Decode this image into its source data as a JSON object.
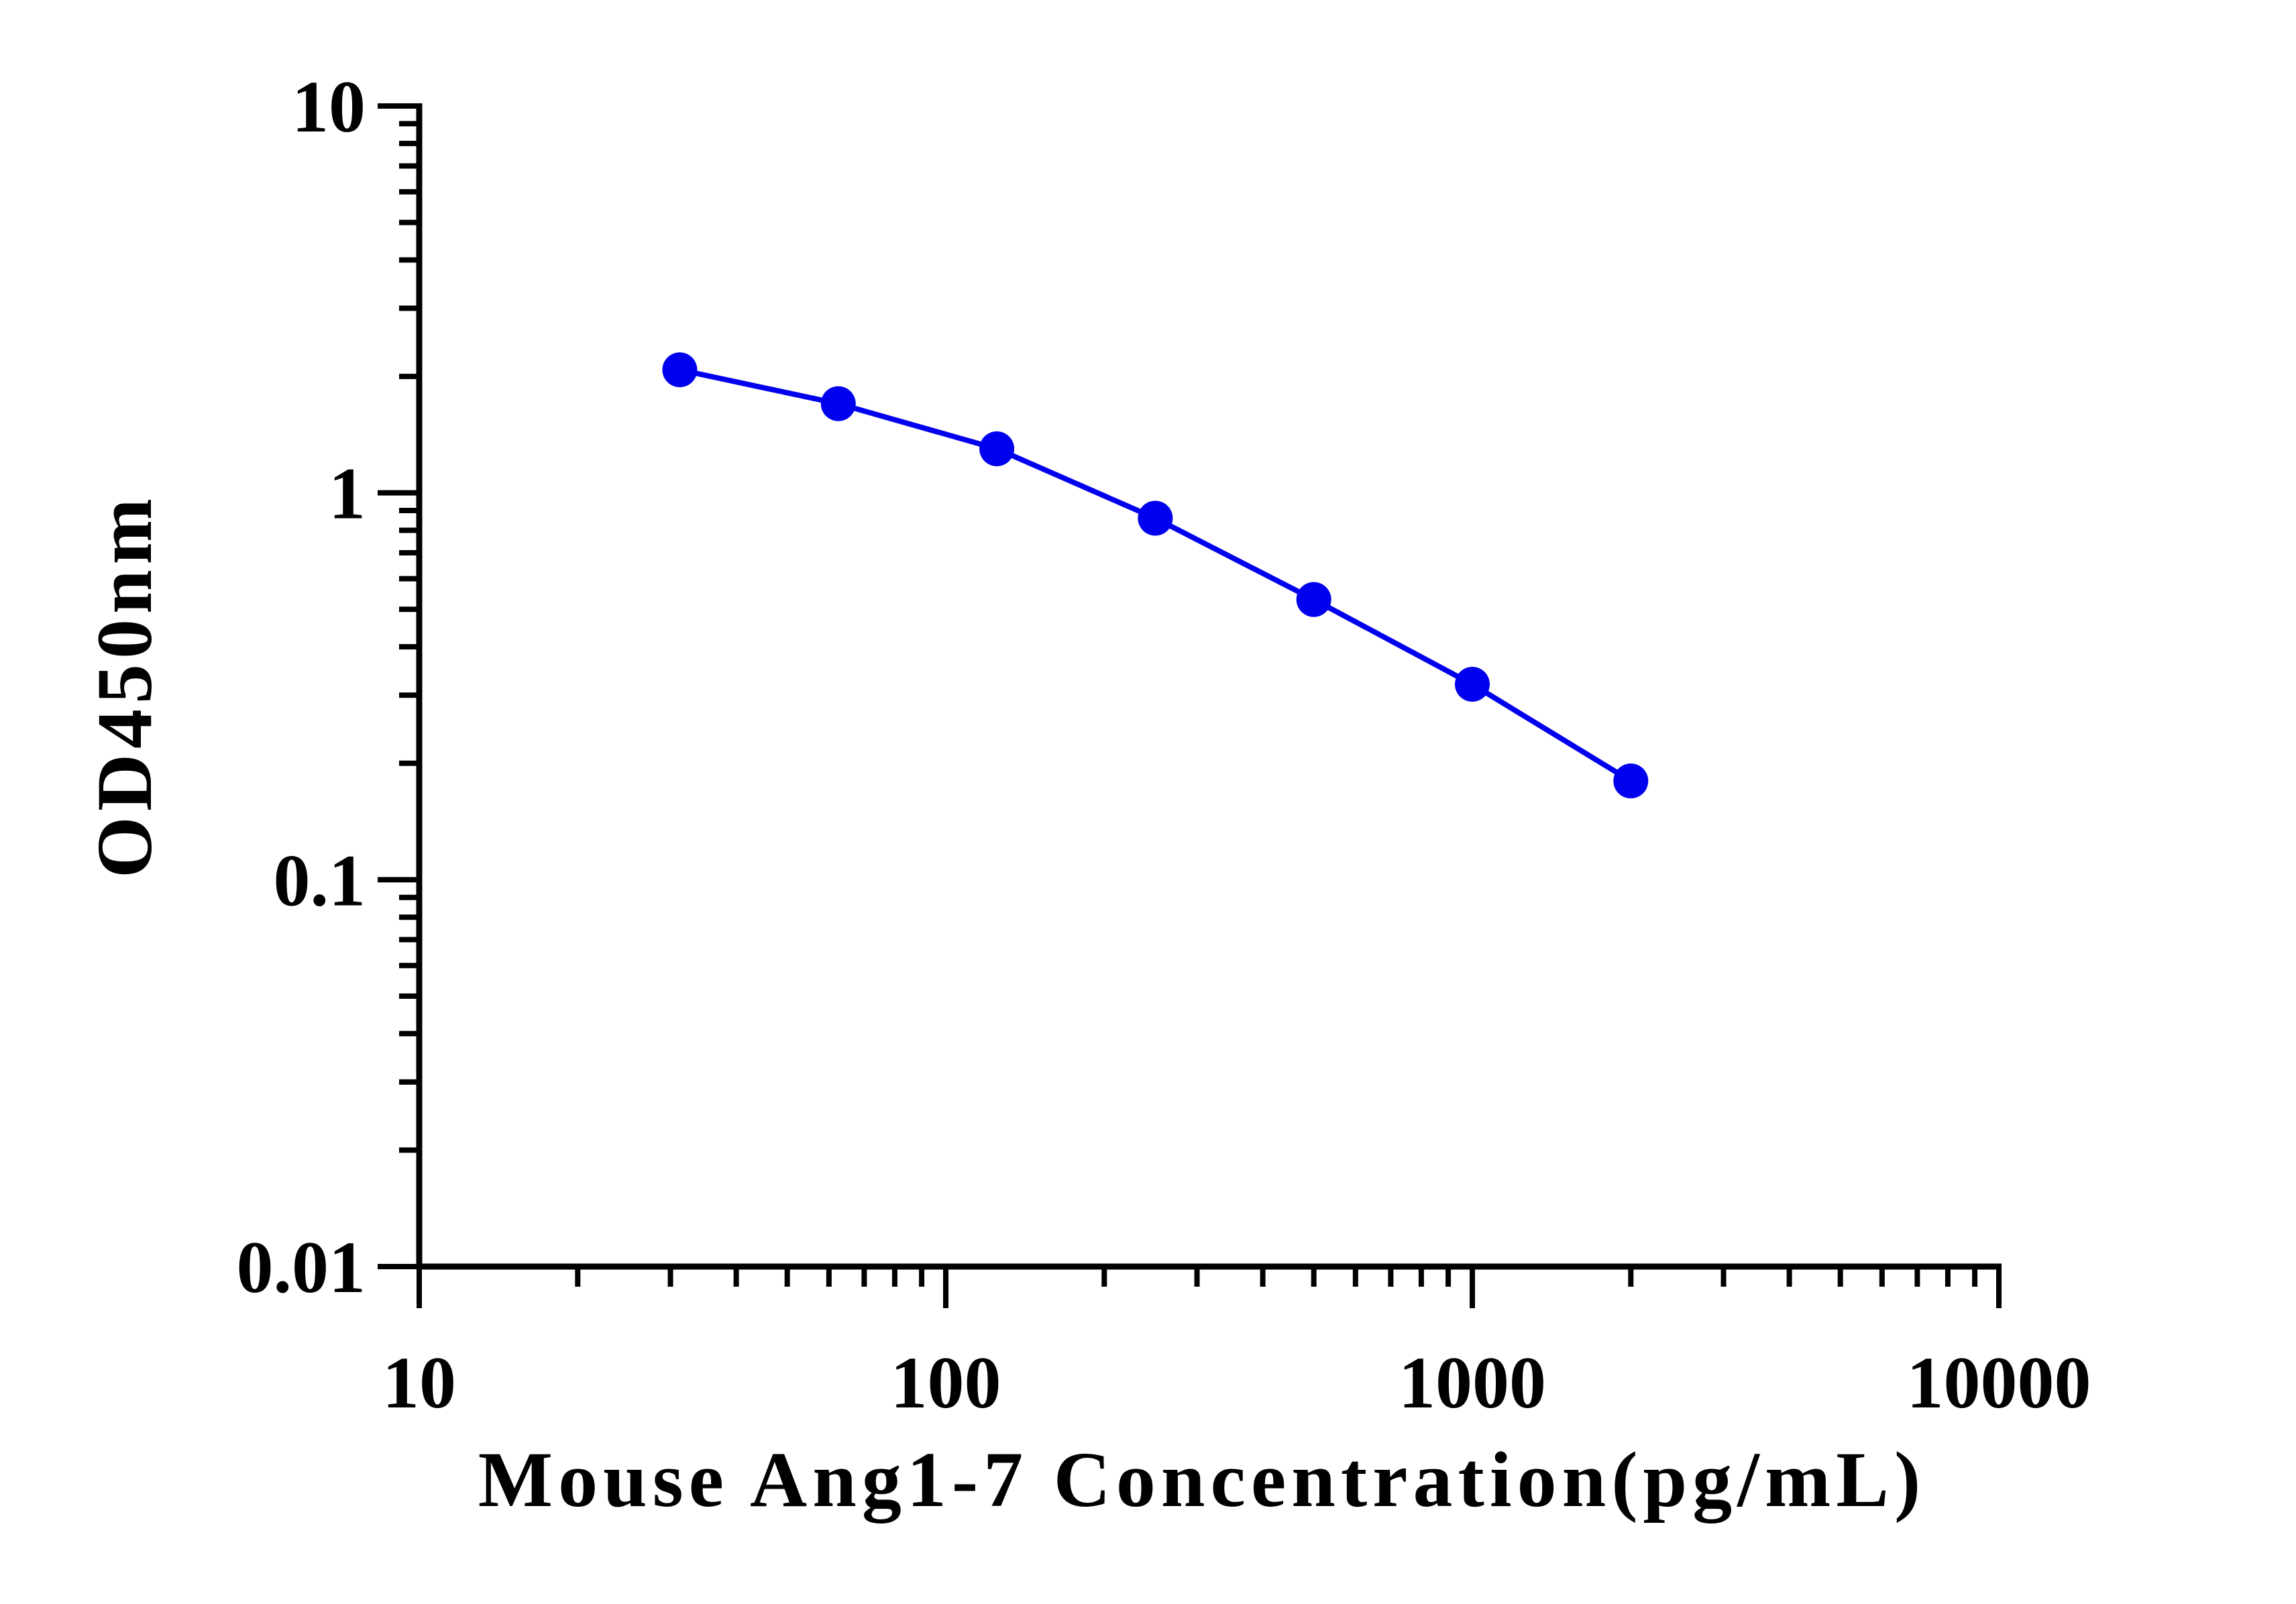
{
  "chart_data": {
    "type": "line",
    "title": "",
    "xlabel": "Mouse Ang1-7 Concentration(pg/mL)",
    "ylabel": "OD450nm",
    "x_scale": "log",
    "y_scale": "log",
    "xlim": [
      10,
      10000
    ],
    "ylim": [
      0.01,
      10
    ],
    "x_ticks": [
      "10",
      "100",
      "1000",
      "10000"
    ],
    "y_ticks": [
      "0.01",
      "0.1",
      "1",
      "10"
    ],
    "grid": false,
    "legend": "none",
    "series": [
      {
        "color": "#0000ee",
        "x": [
          31.25,
          62.5,
          125,
          250,
          500,
          1000,
          2000
        ],
        "y": [
          2.08,
          1.7,
          1.3,
          0.86,
          0.53,
          0.32,
          0.18
        ]
      }
    ]
  }
}
